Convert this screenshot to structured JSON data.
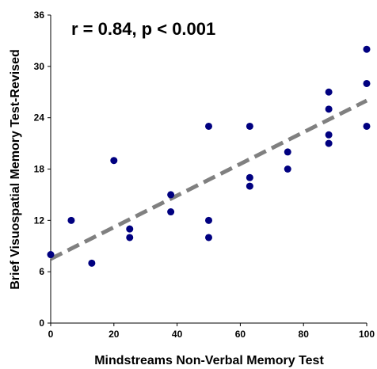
{
  "chart_data": {
    "type": "scatter",
    "annotation": "r = 0.84, p < 0.001",
    "x_label": "Mindstreams Non-Verbal Memory Test",
    "y_label": "Brief Visuospatial Memory Test-Revised",
    "x": [
      0,
      6.5,
      13,
      20,
      25,
      25,
      38,
      38,
      50,
      50,
      50,
      63,
      63,
      63,
      75,
      75,
      88,
      88,
      88,
      88,
      100,
      100,
      100
    ],
    "values": [
      8,
      12,
      7,
      19,
      11,
      10,
      15,
      13,
      23,
      12,
      10,
      23,
      17,
      16,
      20,
      18,
      27,
      25,
      22,
      21,
      32,
      28,
      23
    ],
    "color": "#000080",
    "trendline": {
      "x": [
        0,
        100
      ],
      "values": [
        7.5,
        26
      ],
      "color": "#808080"
    },
    "xlim": [
      0,
      100
    ],
    "xticks": [
      0,
      20,
      40,
      60,
      80,
      100
    ],
    "ylim": [
      0,
      36
    ],
    "yticks": [
      0,
      6,
      12,
      18,
      24,
      30,
      36
    ],
    "grid": false
  }
}
